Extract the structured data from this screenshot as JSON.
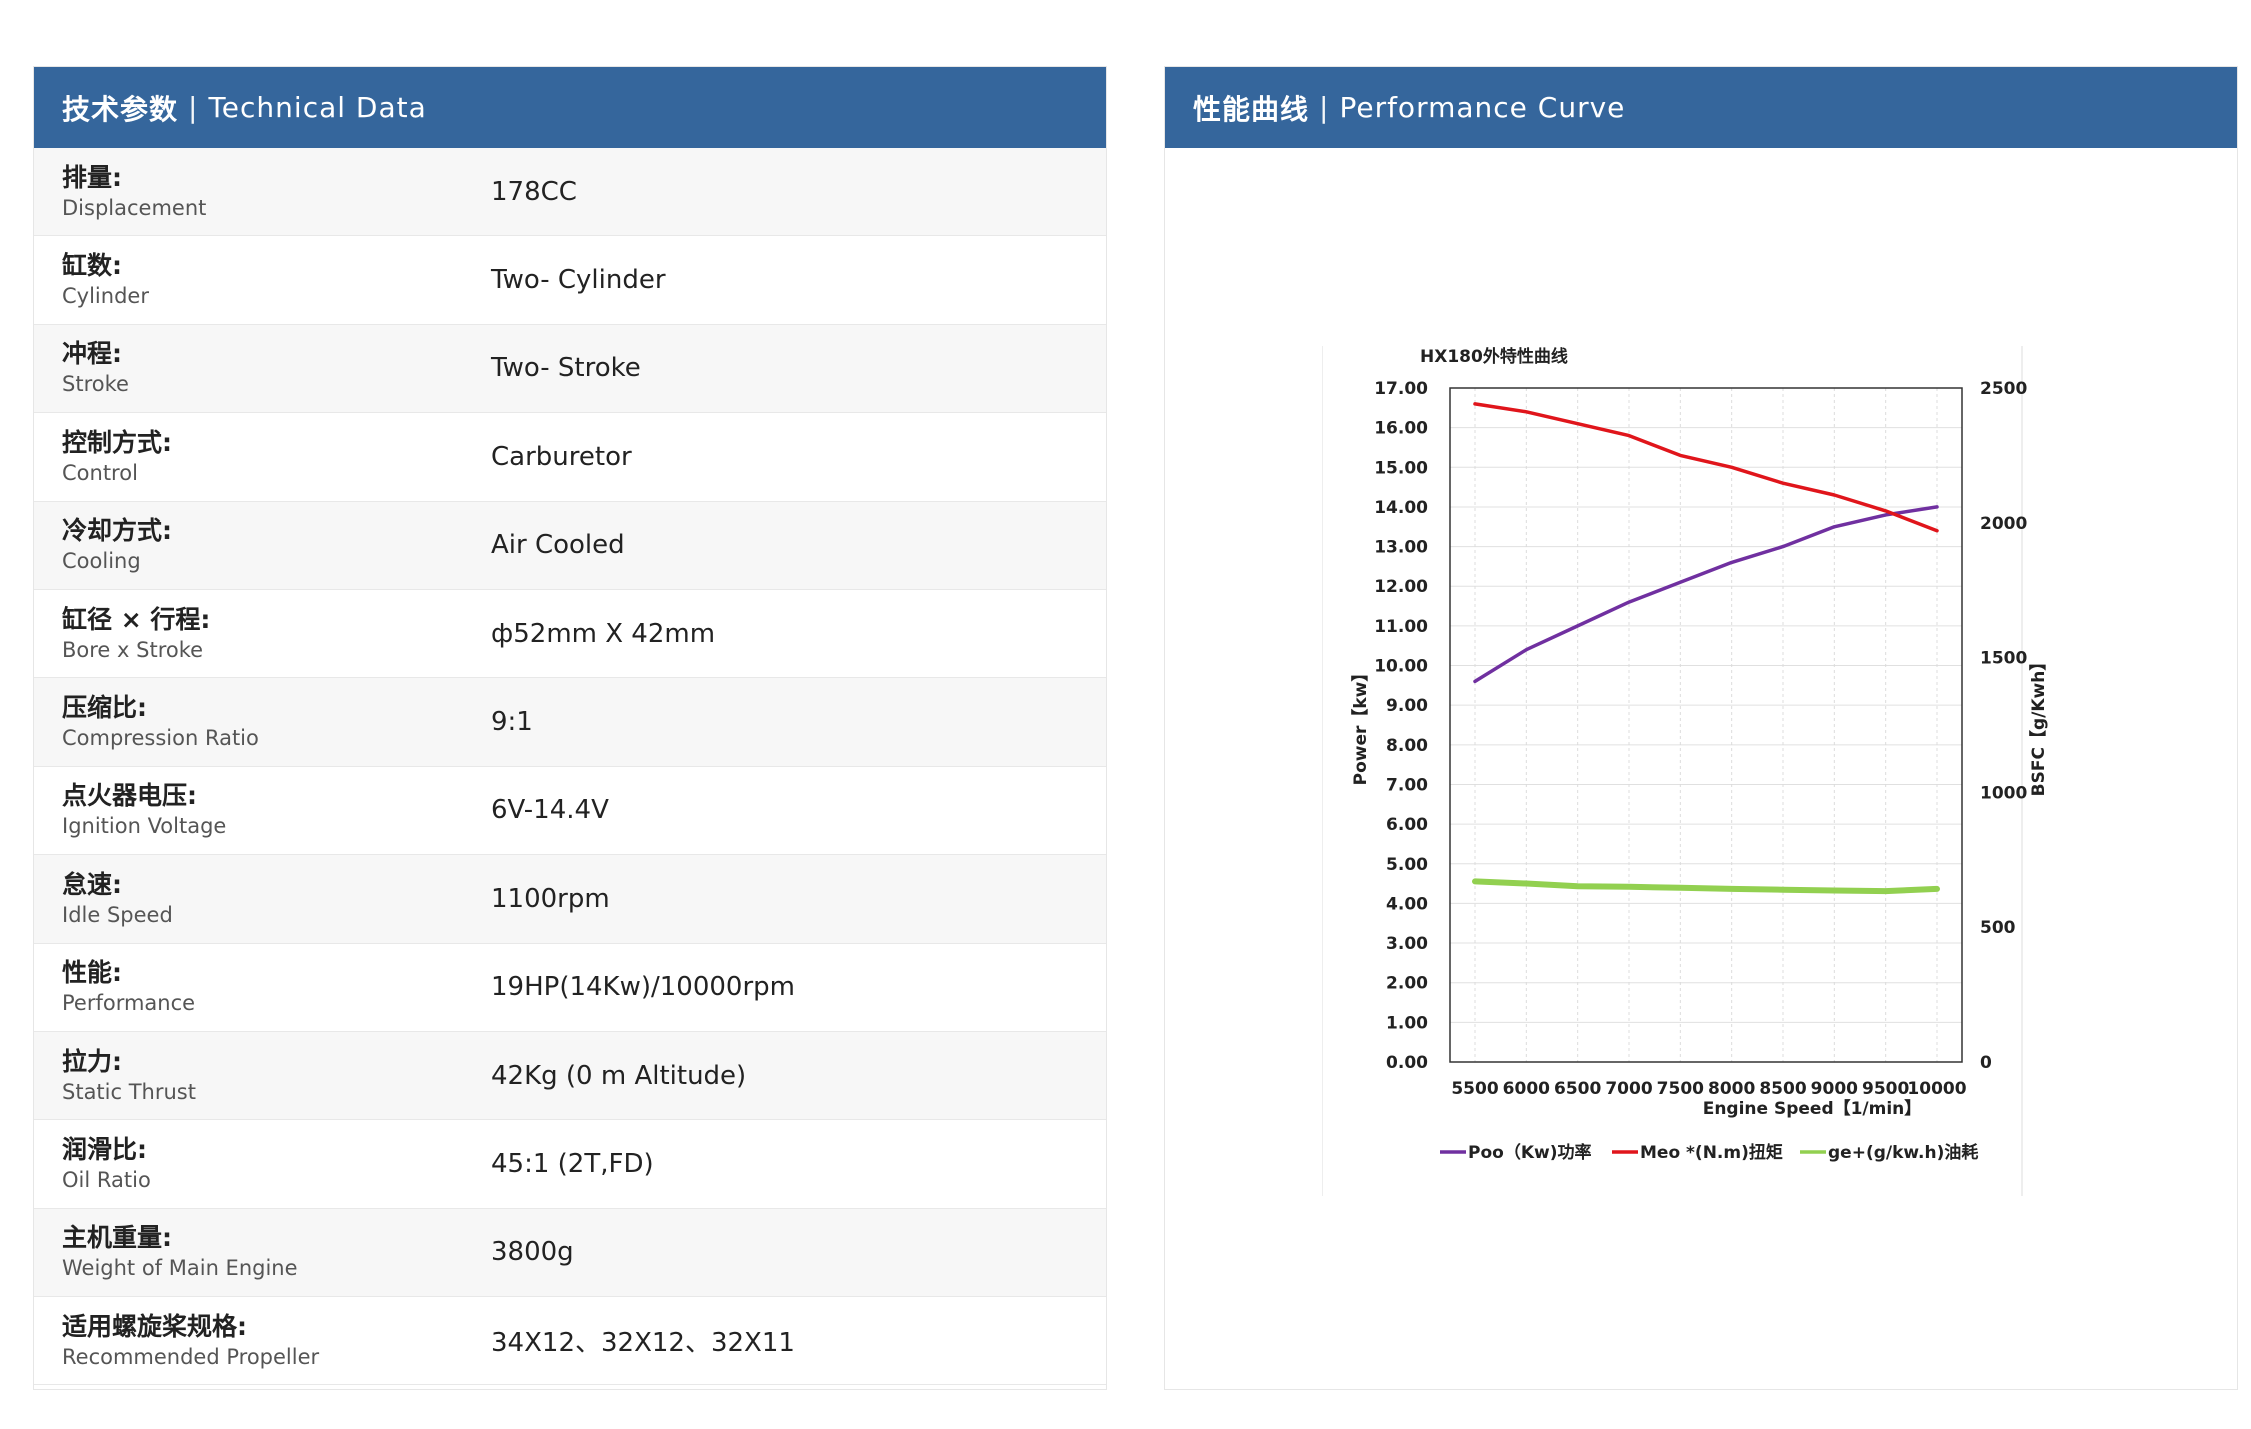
{
  "technical": {
    "title_cn": "技术参数",
    "sep": "|",
    "title_en": "Technical Data",
    "rows": [
      {
        "cn": "排量:",
        "en": "Displacement",
        "value": "178CC"
      },
      {
        "cn": "缸数:",
        "en": "Cylinder",
        "value": "Two- Cylinder"
      },
      {
        "cn": "冲程:",
        "en": "Stroke",
        "value": "Two- Stroke"
      },
      {
        "cn": "控制方式:",
        "en": "Control",
        "value": "Carburetor"
      },
      {
        "cn": "冷却方式:",
        "en": "Cooling",
        "value": "Air Cooled"
      },
      {
        "cn": "缸径 × 行程:",
        "en": "Bore x Stroke",
        "value": "ф52mm X 42mm"
      },
      {
        "cn": "压缩比:",
        "en": "Compression Ratio",
        "value": "9:1"
      },
      {
        "cn": "点火器电压:",
        "en": "Ignition Voltage",
        "value": "6V-14.4V"
      },
      {
        "cn": "怠速:",
        "en": "Idle Speed",
        "value": "1100rpm"
      },
      {
        "cn": "性能:",
        "en": "Performance",
        "value": "19HP(14Kw)/10000rpm"
      },
      {
        "cn": "拉力:",
        "en": "Static Thrust",
        "value": "42Kg (0 m Altitude)"
      },
      {
        "cn": "润滑比:",
        "en": "Oil Ratio",
        "value": "45:1 (2T,FD)"
      },
      {
        "cn": "主机重量:",
        "en": "Weight of Main Engine",
        "value": "3800g"
      },
      {
        "cn": "适用螺旋桨规格:",
        "en": "Recommended Propeller",
        "value": "34X12、32X12、32X11"
      }
    ]
  },
  "performance": {
    "title_cn": "性能曲线",
    "sep": "|",
    "title_en": "Performance Curve"
  },
  "colors": {
    "header_bg": "#35669c",
    "power": "#7030a0",
    "torque": "#e0151b",
    "bsfc": "#92d050"
  },
  "chart_data": {
    "type": "line",
    "title": "HX180外特性曲线",
    "xlabel": "Engine Speed【1/min】",
    "ylabel": "Power【kw】",
    "y2label": "BSFC【g/Kwh】",
    "x": [
      5500,
      6000,
      6500,
      7000,
      7500,
      8000,
      8500,
      9000,
      9500,
      10000
    ],
    "x_ticks": [
      "5500",
      "6000",
      "6500",
      "7000",
      "7500",
      "8000",
      "8500",
      "9000",
      "9500",
      "10000"
    ],
    "ylim": [
      0,
      17
    ],
    "y_ticks": [
      "0.00",
      "1.00",
      "2.00",
      "3.00",
      "4.00",
      "5.00",
      "6.00",
      "7.00",
      "8.00",
      "9.00",
      "10.00",
      "11.00",
      "12.00",
      "13.00",
      "14.00",
      "15.00",
      "16.00",
      "17.00"
    ],
    "y2lim": [
      0,
      2500
    ],
    "y2_ticks": [
      "0",
      "500",
      "1000",
      "1500",
      "2000",
      "2500"
    ],
    "grid": true,
    "legend_position": "bottom",
    "series": [
      {
        "name": "Poo（Kw)功率",
        "axis": "left",
        "values": [
          9.6,
          10.4,
          11.0,
          11.6,
          12.1,
          12.6,
          13.0,
          13.5,
          13.8,
          14.0
        ]
      },
      {
        "name": "Meo *(N.m)扭矩",
        "axis": "left",
        "values": [
          16.6,
          16.4,
          16.1,
          15.8,
          15.3,
          15.0,
          14.6,
          14.3,
          13.9,
          13.4
        ]
      },
      {
        "name": "ge+(g/kw.h)油耗",
        "axis": "right",
        "values": [
          670,
          662,
          652,
          650,
          646,
          642,
          639,
          636,
          634,
          642
        ]
      }
    ]
  }
}
